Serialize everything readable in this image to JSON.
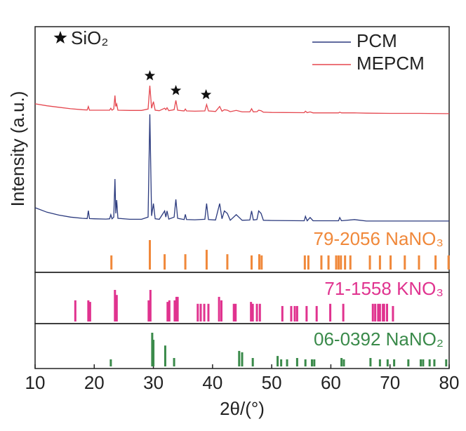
{
  "chart_data": {
    "type": "xrd",
    "x_label": "2θ/(°)",
    "y_label": "Intensity (a.u.)",
    "xlim": [
      10,
      80
    ],
    "xticks": [
      10,
      20,
      30,
      40,
      50,
      60,
      70,
      80
    ],
    "ylim": [
      0,
      100
    ],
    "x": [
      10,
      12,
      14,
      16,
      18,
      18.8,
      19.0,
      19.2,
      20,
      22,
      22.6,
      22.8,
      23.0,
      23.3,
      23.5,
      23.65,
      23.8,
      24.0,
      26,
      28,
      29.1,
      29.4,
      29.7,
      30.0,
      30.3,
      31,
      31.9,
      32.1,
      32.3,
      32.6,
      33.5,
      33.8,
      34.1,
      35.2,
      35.4,
      35.6,
      37,
      38.7,
      39.0,
      39.3,
      40.5,
      41.2,
      41.6,
      42.0,
      42.5,
      43,
      44.0,
      45,
      46.3,
      46.6,
      46.9,
      47.5,
      47.8,
      48.2,
      48.6,
      50,
      55.5,
      55.7,
      56.0,
      56.5,
      57,
      61.3,
      61.5,
      61.8,
      64,
      66,
      70,
      75,
      80
    ],
    "series": [
      {
        "name": "PCM",
        "color": "#2b3a7e",
        "values": [
          26.3,
          24.5,
          23.3,
          22.5,
          22.0,
          21.9,
          25.1,
          21.9,
          21.8,
          21.7,
          21.8,
          23.5,
          21.8,
          22.5,
          38.0,
          24.0,
          29.4,
          22.0,
          21.6,
          21.6,
          22.5,
          64.3,
          23.0,
          28.0,
          21.8,
          21.6,
          25.0,
          22.5,
          25.0,
          21.7,
          22.5,
          29.7,
          22.0,
          21.5,
          23.6,
          21.5,
          21.4,
          21.6,
          28.0,
          21.5,
          21.3,
          28.0,
          21.8,
          25.0,
          24.0,
          21.2,
          23.5,
          21.2,
          21.3,
          25.0,
          21.3,
          21.5,
          25.0,
          24.0,
          21.2,
          21.1,
          21.0,
          22.8,
          21.0,
          22.3,
          21.0,
          21.0,
          22.3,
          21.0,
          21.5,
          20.9,
          20.9,
          20.9,
          20.9
        ]
      },
      {
        "name": "MEPCM",
        "color": "#e5474f",
        "values": [
          68.6,
          67.8,
          67.2,
          66.6,
          66.2,
          66.1,
          67.5,
          66.0,
          66.0,
          66.0,
          66.0,
          66.8,
          66.0,
          66.5,
          72.0,
          67.5,
          68.5,
          66.0,
          65.9,
          65.9,
          66.5,
          76.0,
          66.8,
          69.5,
          66.0,
          65.8,
          66.8,
          66.2,
          67.0,
          65.8,
          66.2,
          70.0,
          66.0,
          65.7,
          66.5,
          65.7,
          65.6,
          65.7,
          68.3,
          65.7,
          65.5,
          67.5,
          65.6,
          66.2,
          66.0,
          65.4,
          65.9,
          65.3,
          65.3,
          66.6,
          65.3,
          65.4,
          66.0,
          65.8,
          65.2,
          65.1,
          65.0,
          65.6,
          65.0,
          65.3,
          64.9,
          64.9,
          65.2,
          64.9,
          64.9,
          64.8,
          64.7,
          64.7,
          64.6
        ]
      }
    ],
    "annotation": {
      "label": "SiO₂",
      "positions": [
        29.4,
        33.8,
        38.9
      ]
    },
    "references": [
      {
        "name": "79-2056 NaNO₃",
        "color": "#f0883a",
        "positions": [
          22.9,
          29.4,
          31.9,
          35.4,
          39.0,
          42.5,
          46.6,
          47.9,
          48.3,
          55.6,
          56.2,
          58.4,
          59.6,
          60.9,
          61.3,
          61.7,
          62.4,
          63.3,
          66.6,
          68.3,
          70.1,
          72.5,
          74.9,
          77.7,
          79.9
        ],
        "values": [
          48,
          100,
          52,
          52,
          67,
          52,
          48,
          52,
          48,
          48,
          48,
          48,
          48,
          48,
          48,
          48,
          48,
          48,
          48,
          48,
          48,
          48,
          48,
          48,
          48
        ]
      },
      {
        "name": "71-1558 KNO₃",
        "color": "#e0338f",
        "positions": [
          16.8,
          19.0,
          19.3,
          23.5,
          23.8,
          29.2,
          29.5,
          32.4,
          32.7,
          33.6,
          33.9,
          34.1,
          37.5,
          38.0,
          38.6,
          39.3,
          41.1,
          41.5,
          43.6,
          43.9,
          46.5,
          46.8,
          47.5,
          48.0,
          51.8,
          53.3,
          53.9,
          54.3,
          55.9,
          57.6,
          59.9,
          62.1,
          67.1,
          67.5,
          68.0,
          68.3,
          68.8,
          69.0,
          69.5,
          70.5
        ],
        "values": [
          67,
          67,
          62,
          100,
          84,
          67,
          100,
          62,
          67,
          67,
          78,
          78,
          56,
          56,
          56,
          56,
          78,
          67,
          56,
          56,
          62,
          56,
          56,
          56,
          49,
          49,
          49,
          49,
          49,
          49,
          56,
          56,
          56,
          56,
          56,
          56,
          56,
          56,
          56,
          49
        ]
      },
      {
        "name": "06-0392 NaNO₂",
        "color": "#3a8a4a",
        "positions": [
          22.8,
          29.8,
          30.0,
          32.0,
          33.5,
          44.5,
          45.0,
          46.8,
          51.0,
          51.6,
          52.6,
          54.3,
          55.7,
          56.8,
          57.2,
          61.8,
          62.2,
          66.7,
          68.3,
          69.6,
          70.7,
          73.1,
          75.2,
          75.6,
          76.7,
          77.5,
          79.5
        ],
        "values": [
          21,
          100,
          79,
          62,
          25,
          46,
          42,
          25,
          31,
          21,
          21,
          25,
          21,
          21,
          21,
          25,
          21,
          25,
          21,
          21,
          21,
          21,
          21,
          21,
          21,
          21,
          21
        ]
      }
    ]
  }
}
